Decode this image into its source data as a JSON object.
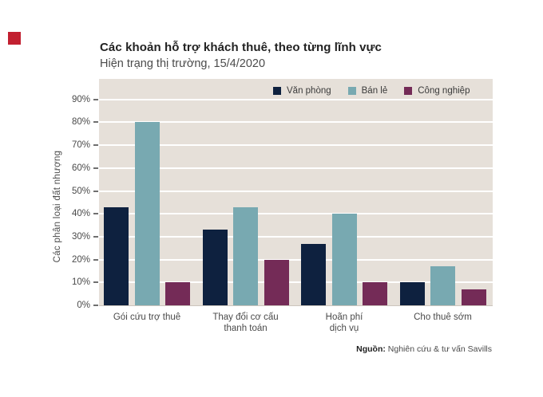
{
  "logo": {
    "color": "#c22030",
    "name": "savills-red-square"
  },
  "header": {
    "title": "Các khoản hỗ trợ khách thuê, theo từng lĩnh vực",
    "subtitle": "Hiện trạng thị trường, 15/4/2020"
  },
  "chart_data": {
    "type": "bar",
    "title": "Các khoản hỗ trợ khách thuê, theo từng lĩnh vực",
    "subtitle": "Hiện trạng thị trường, 15/4/2020",
    "ylabel": "Các phân loại đất nhượng",
    "xlabel": "",
    "categories": [
      "Gói cứu trợ thuê",
      "Thay đổi cơ cấu thanh toán",
      "Hoãn phí dịch vụ",
      "Cho thuê sớm"
    ],
    "xtick_lines": [
      [
        "Gói cứu trợ thuê"
      ],
      [
        "Thay đổi cơ cấu",
        "thanh toán"
      ],
      [
        "Hoãn phí",
        "dịch vụ"
      ],
      [
        "Cho thuê sớm"
      ]
    ],
    "series": [
      {
        "name": "Văn phòng",
        "color": "#0e213f",
        "values": [
          43,
          33,
          27,
          10
        ]
      },
      {
        "name": "Bán lẻ",
        "color": "#78a9b1",
        "values": [
          80,
          43,
          40,
          17
        ]
      },
      {
        "name": "Công nghiệp",
        "color": "#742b57",
        "values": [
          10,
          20,
          10,
          7
        ]
      }
    ],
    "yticks": [
      "0%",
      "10%",
      "20%",
      "30%",
      "40%",
      "50%",
      "60%",
      "70%",
      "80%",
      "90%"
    ],
    "ylim": [
      0,
      99
    ],
    "grid": true,
    "grid_color": "#ffffff",
    "plot_background": "#e6e0d9",
    "legend_position": "top-inside"
  },
  "footer": {
    "source_label": "Nguồn:",
    "source_text": " Nghiên cứu & tư vấn Savills"
  }
}
